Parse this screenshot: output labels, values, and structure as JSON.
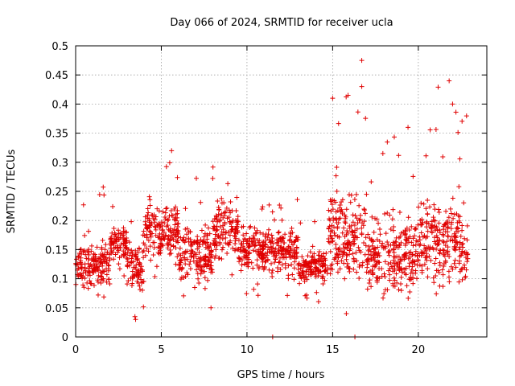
{
  "chart_data": {
    "type": "scatter",
    "title": "Day 066 of 2024, SRMTID for receiver ucla",
    "xlabel": "GPS time / hours",
    "ylabel": "SRMTID / TECUs",
    "xlim": [
      0,
      24
    ],
    "ylim": [
      0,
      0.5
    ],
    "x_ticks": [
      0,
      5,
      10,
      15,
      20
    ],
    "x_tick_labels": [
      "0",
      "5",
      "10",
      "15",
      "20"
    ],
    "y_ticks": [
      0,
      0.05,
      0.1,
      0.15,
      0.2,
      0.25,
      0.3,
      0.35,
      0.4,
      0.45,
      0.5
    ],
    "y_tick_labels": [
      "0",
      "0.05",
      "0.1",
      "0.15",
      "0.2",
      "0.25",
      "0.3",
      "0.35",
      "0.4",
      "0.45",
      "0.5"
    ],
    "grid": true,
    "marker": "+",
    "color": "#e00000",
    "x_data_end": 22.9,
    "approx_bands": [
      {
        "x_from": 0.0,
        "x_to": 2.0,
        "y_min": 0.06,
        "y_max": 0.26,
        "center": 0.12
      },
      {
        "x_from": 2.0,
        "x_to": 3.0,
        "y_min": 0.1,
        "y_max": 0.26,
        "center": 0.16
      },
      {
        "x_from": 3.0,
        "x_to": 4.0,
        "y_min": 0.03,
        "y_max": 0.22,
        "center": 0.12
      },
      {
        "x_from": 4.0,
        "x_to": 6.0,
        "y_min": 0.08,
        "y_max": 0.32,
        "center": 0.18
      },
      {
        "x_from": 6.0,
        "x_to": 8.0,
        "y_min": 0.05,
        "y_max": 0.28,
        "center": 0.14
      },
      {
        "x_from": 8.0,
        "x_to": 9.5,
        "y_min": 0.08,
        "y_max": 0.3,
        "center": 0.18
      },
      {
        "x_from": 9.5,
        "x_to": 13.0,
        "y_min": 0.06,
        "y_max": 0.24,
        "center": 0.15
      },
      {
        "x_from": 13.0,
        "x_to": 14.7,
        "y_min": 0.06,
        "y_max": 0.2,
        "center": 0.12
      },
      {
        "x_from": 14.7,
        "x_to": 17.0,
        "y_min": 0.04,
        "y_max": 0.42,
        "center": 0.17
      },
      {
        "x_from": 17.0,
        "x_to": 20.0,
        "y_min": 0.06,
        "y_max": 0.36,
        "center": 0.14
      },
      {
        "x_from": 20.0,
        "x_to": 22.9,
        "y_min": 0.07,
        "y_max": 0.44,
        "center": 0.16
      }
    ],
    "notable_points": [
      {
        "x": 11.5,
        "y": 0.0
      },
      {
        "x": 16.3,
        "y": 0.0
      },
      {
        "x": 16.7,
        "y": 0.475
      },
      {
        "x": 16.7,
        "y": 0.43
      },
      {
        "x": 15.9,
        "y": 0.415
      },
      {
        "x": 15.0,
        "y": 0.41
      },
      {
        "x": 21.8,
        "y": 0.44
      },
      {
        "x": 22.0,
        "y": 0.4
      },
      {
        "x": 19.4,
        "y": 0.36
      },
      {
        "x": 5.6,
        "y": 0.32
      },
      {
        "x": 3.5,
        "y": 0.03
      },
      {
        "x": 7.9,
        "y": 0.05
      },
      {
        "x": 15.8,
        "y": 0.04
      }
    ]
  }
}
